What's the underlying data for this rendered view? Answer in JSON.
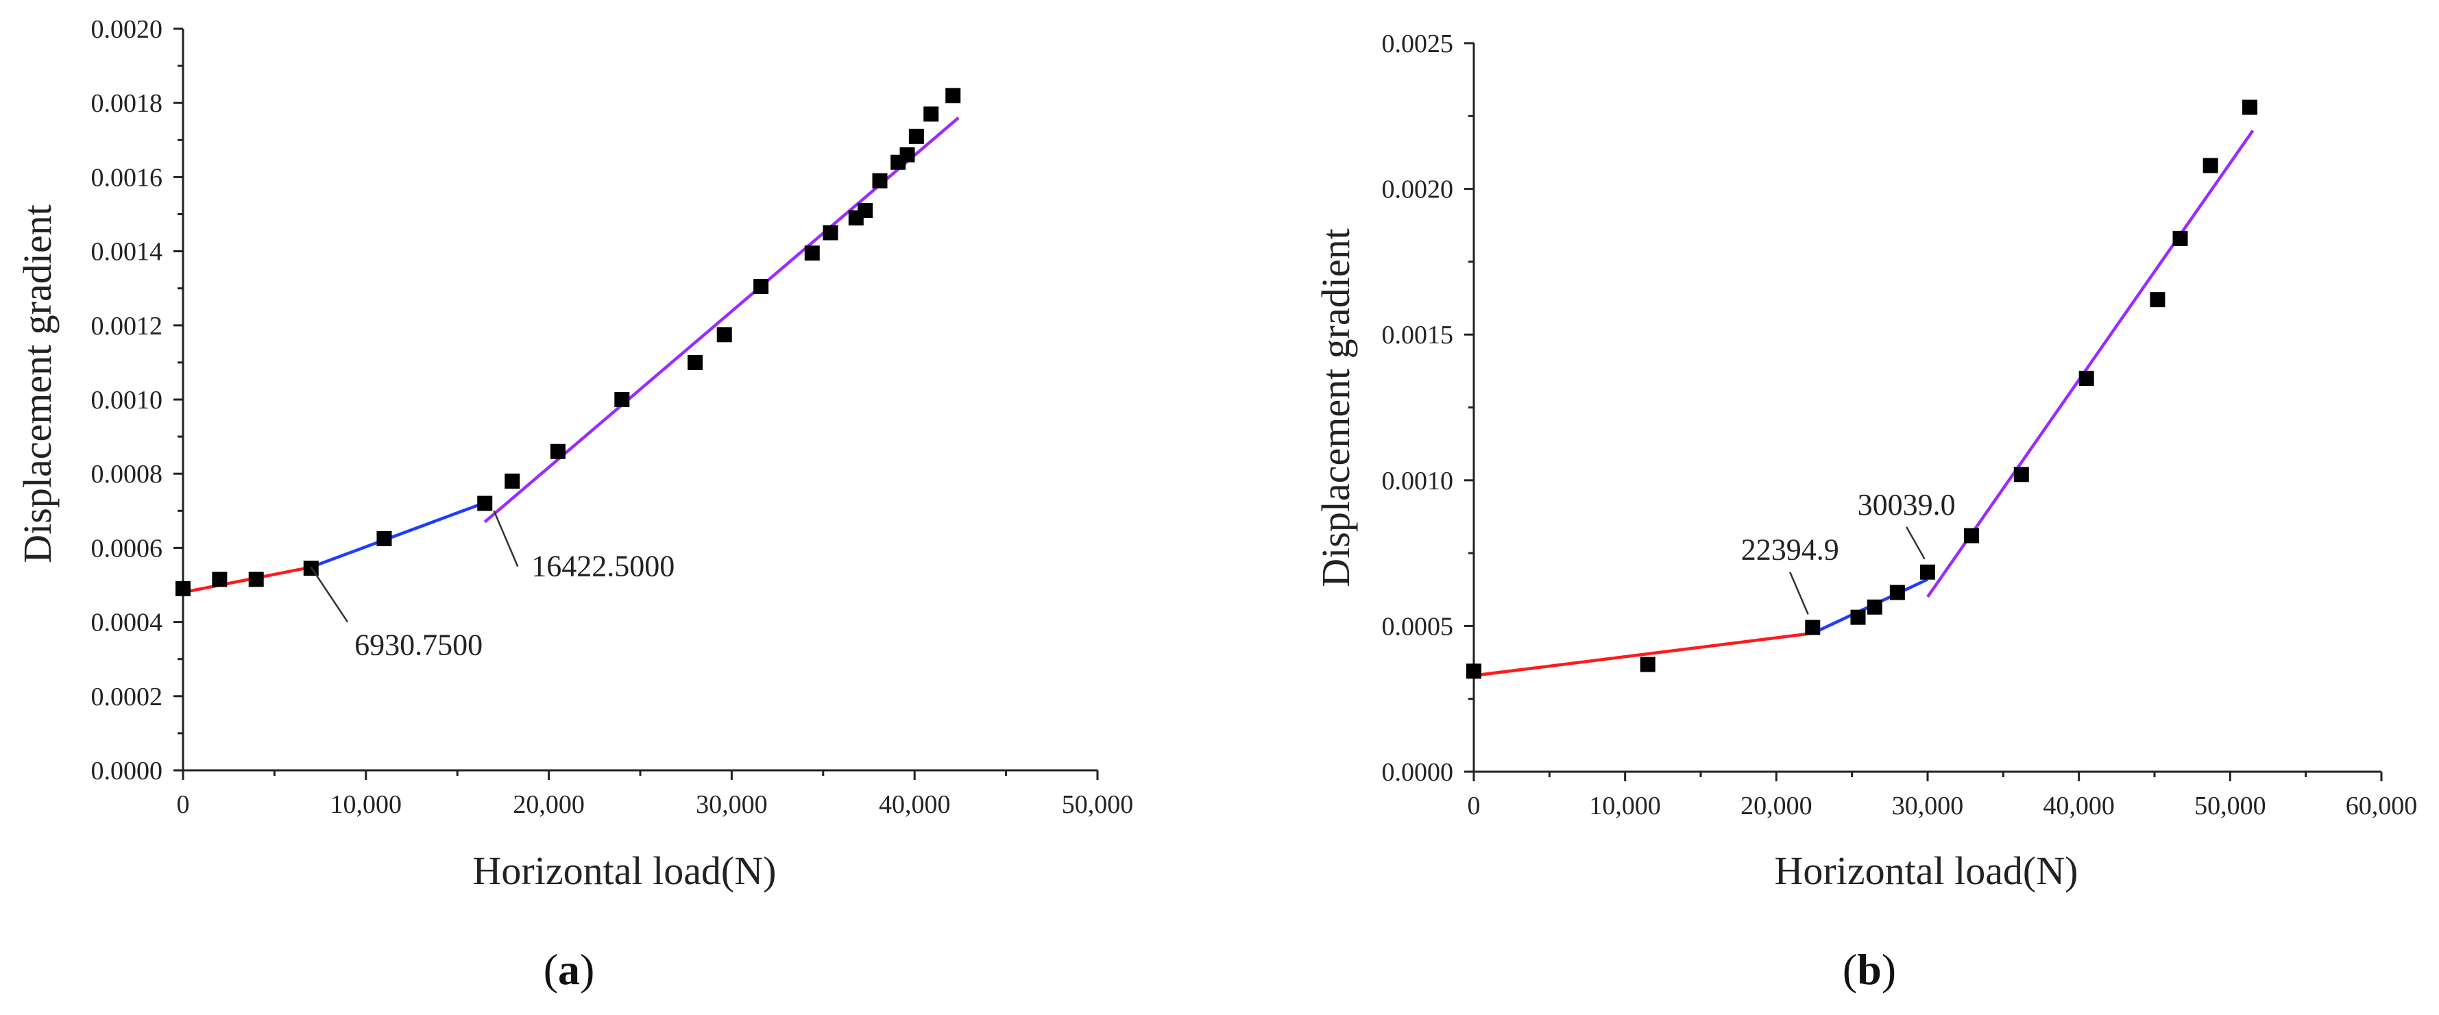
{
  "chart_data": [
    {
      "type": "scatter",
      "panel_label": {
        "open": "(",
        "letter": "a",
        "close": ")"
      },
      "xlabel": "Horizontal load(N)",
      "ylabel": "Displacement gradient",
      "xlim": [
        0,
        50000
      ],
      "ylim": [
        0,
        0.002
      ],
      "x_ticks": [
        0,
        10000,
        20000,
        30000,
        40000,
        50000
      ],
      "x_tick_labels": [
        "0",
        "10,000",
        "20,000",
        "30,000",
        "40,000",
        "50,000"
      ],
      "y_ticks": [
        0,
        0.0002,
        0.0004,
        0.0006,
        0.0008,
        0.001,
        0.0012,
        0.0014,
        0.0016,
        0.0018,
        0.002
      ],
      "y_tick_labels": [
        "0.0000",
        "0.0002",
        "0.0004",
        "0.0006",
        "0.0008",
        "0.0010",
        "0.0012",
        "0.0014",
        "0.0016",
        "0.0018",
        "0.0020"
      ],
      "points": [
        [
          0,
          0.00049
        ],
        [
          2000,
          0.000515
        ],
        [
          4000,
          0.000515
        ],
        [
          7000,
          0.000545
        ],
        [
          11000,
          0.000625
        ],
        [
          16500,
          0.00072
        ],
        [
          18000,
          0.00078
        ],
        [
          20500,
          0.00086
        ],
        [
          24000,
          0.001
        ],
        [
          28000,
          0.0011
        ],
        [
          29600,
          0.001175
        ],
        [
          31600,
          0.001305
        ],
        [
          34400,
          0.001395
        ],
        [
          35400,
          0.00145
        ],
        [
          36800,
          0.00149
        ],
        [
          37300,
          0.00151
        ],
        [
          38100,
          0.00159
        ],
        [
          39100,
          0.00164
        ],
        [
          39600,
          0.00166
        ],
        [
          40100,
          0.00171
        ],
        [
          40900,
          0.00177
        ],
        [
          42100,
          0.00182
        ]
      ],
      "fit_lines": [
        {
          "color": "#ff1a1a",
          "x": [
            0,
            7000
          ],
          "y": [
            0.00048,
            0.000548
          ]
        },
        {
          "color": "#1f3cff",
          "x": [
            7000,
            16400
          ],
          "y": [
            0.000548,
            0.00072
          ]
        },
        {
          "color": "#9b2bff",
          "x": [
            16500,
            42400
          ],
          "y": [
            0.00067,
            0.00176
          ]
        }
      ],
      "annotations": [
        {
          "text": "6930.7500",
          "x": 7000,
          "y": 0.000548,
          "lx": 9000,
          "ly": 0.0004
        },
        {
          "text": "16422.5000",
          "x": 17000,
          "y": 0.0007,
          "lx": 18300,
          "ly": 0.00055
        }
      ]
    },
    {
      "type": "scatter",
      "panel_label": {
        "open": "(",
        "letter": "b",
        "close": ")"
      },
      "xlabel": "Horizontal load(N)",
      "ylabel": "Displacement gradient",
      "xlim": [
        0,
        60000
      ],
      "ylim": [
        0,
        0.0025
      ],
      "x_ticks": [
        0,
        10000,
        20000,
        30000,
        40000,
        50000,
        60000
      ],
      "x_tick_labels": [
        "0",
        "10,000",
        "20,000",
        "30,000",
        "40,000",
        "50,000",
        "60,000"
      ],
      "y_ticks": [
        0,
        0.0005,
        0.001,
        0.0015,
        0.002,
        0.0025
      ],
      "y_tick_labels": [
        "0.0000",
        "0.0005",
        "0.0010",
        "0.0015",
        "0.0020",
        "0.0025"
      ],
      "points": [
        [
          0,
          0.000345
        ],
        [
          11500,
          0.000368
        ],
        [
          22400,
          0.000495
        ],
        [
          25400,
          0.00053
        ],
        [
          26500,
          0.000565
        ],
        [
          28000,
          0.000615
        ],
        [
          30000,
          0.000685
        ],
        [
          32900,
          0.00081
        ],
        [
          36200,
          0.00102
        ],
        [
          40500,
          0.00135
        ],
        [
          45200,
          0.00162
        ],
        [
          46700,
          0.00183
        ],
        [
          48700,
          0.00208
        ],
        [
          51300,
          0.00228
        ]
      ],
      "fit_lines": [
        {
          "color": "#ff1a1a",
          "x": [
            0,
            22400
          ],
          "y": [
            0.00033,
            0.000475
          ]
        },
        {
          "color": "#1f3cff",
          "x": [
            22400,
            30000
          ],
          "y": [
            0.000475,
            0.00066
          ]
        },
        {
          "color": "#9b2bff",
          "x": [
            30000,
            51500
          ],
          "y": [
            0.0006,
            0.0022
          ]
        }
      ],
      "annotations": [
        {
          "text": "22394.9",
          "x": 22100,
          "y": 0.00054,
          "lx": 20900,
          "ly": 0.000685
        },
        {
          "text": "30039.0",
          "x": 29800,
          "y": 0.00073,
          "lx": 28600,
          "ly": 0.00084
        }
      ]
    }
  ]
}
